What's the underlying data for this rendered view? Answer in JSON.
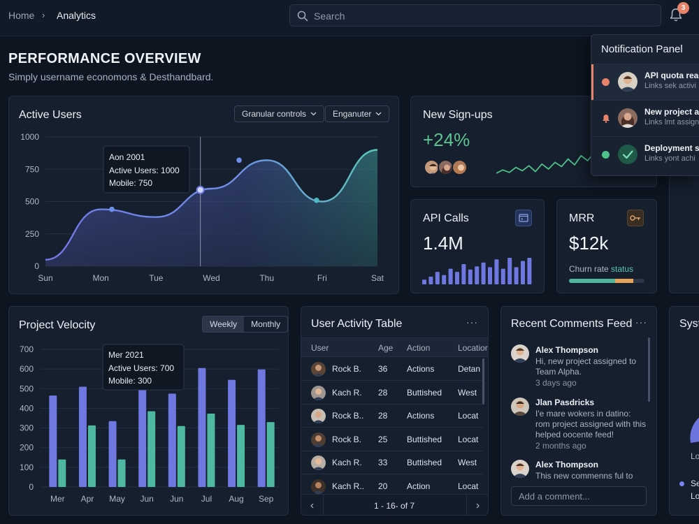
{
  "breadcrumb": {
    "home": "Home",
    "separator": "›",
    "current": "Analytics"
  },
  "search": {
    "placeholder": "Search"
  },
  "notifications_count": "3",
  "page": {
    "title": "PERFORMANCE OVERVIEW",
    "subtitle": "Simply username economons & Desthandbard."
  },
  "active_users": {
    "title": "Active Users",
    "dropdown1": "Granular controls",
    "dropdown2": "Enganuter",
    "tooltip": {
      "title": "Aon 2001",
      "line1": "Active Users: 1000",
      "line2": "Mobile: 750"
    }
  },
  "signups": {
    "title": "New Sign-ups",
    "value": "+24%",
    "accent": "#5fc48f"
  },
  "api_calls": {
    "title": "API Calls",
    "value": "1.4M"
  },
  "mrr": {
    "title": "MRR",
    "value": "$12k",
    "churn_label": "Churn rate",
    "churn_status": "status",
    "churn_fill": 0.85
  },
  "velocity": {
    "title": "Project Velocity",
    "tab_weekly": "Weekly",
    "tab_monthly": "Monthly",
    "tooltip": {
      "title": "Mer 2021",
      "line1": "Active Users: 700",
      "line2": "Mobile: 300"
    }
  },
  "user_table": {
    "title": "User Activity Table",
    "menu": "···",
    "columns": [
      "User",
      "Age",
      "Action",
      "Location"
    ],
    "rows": [
      [
        "Rock B.",
        "36",
        "Actions",
        "Detan"
      ],
      [
        "Kach R.",
        "28",
        "Buttished",
        "West"
      ],
      [
        "Rock B..",
        "28",
        "Actions",
        "Locat"
      ],
      [
        "Rock B.",
        "25",
        "Buttished",
        "Locat"
      ],
      [
        "Kach R.",
        "33",
        "Buttished",
        "West"
      ],
      [
        "Kach R..",
        "20",
        "Action",
        "Locat"
      ]
    ],
    "pagination": "1 - 16- of 7",
    "prev": "‹",
    "next": "›"
  },
  "comments": {
    "title": "Recent Comments Feed",
    "menu": "···",
    "items": [
      {
        "name": "Alex Thompson",
        "text": "Hi, new project assigned to Team Alpha.",
        "time": "3 days ago"
      },
      {
        "name": "Jlan Pasdricks",
        "text": "I'e mare wokers in datino: rom project assigned with this helped oocente feed!",
        "time": "2 months ago"
      },
      {
        "name": "Alex Thompson",
        "text": "This new commenns ful to",
        "time": ""
      }
    ],
    "input_placeholder": "Add a comment..."
  },
  "system_card": {
    "title": "Syst",
    "legend1": "Lo",
    "legend2": "Se",
    "legend3": "Lo"
  },
  "notification_panel": {
    "title": "Notification Panel",
    "items": [
      {
        "title": "API quota reac",
        "sub": "Links sek activi",
        "dot": "#e8846a"
      },
      {
        "title": "New project as",
        "sub": "Links lmt assign",
        "dot": "#e8846a"
      },
      {
        "title": "Deployment su",
        "sub": "Links yont achi",
        "dot": "#4fc08a"
      }
    ]
  },
  "chart_data": [
    {
      "type": "area",
      "title": "Active Users",
      "categories": [
        "Sun",
        "Mon",
        "Tue",
        "Wed",
        "Thu",
        "Fri",
        "Sat"
      ],
      "x": [
        0,
        1,
        2,
        3,
        4,
        5,
        6
      ],
      "values": [
        50,
        440,
        380,
        600,
        820,
        500,
        900
      ],
      "points": [
        [
          1.2,
          440
        ],
        [
          2.8,
          590
        ],
        [
          3.5,
          820
        ],
        [
          4.9,
          510
        ]
      ],
      "cursor_x": 2.8,
      "ylim": [
        0,
        1000
      ],
      "yticks": [
        0,
        250,
        500,
        750,
        1000
      ],
      "grid": true
    },
    {
      "type": "bar",
      "title": "Project Velocity",
      "categories": [
        "Mer",
        "Apr",
        "May",
        "Jun",
        "Jun",
        "Jul",
        "Aug",
        "Sep"
      ],
      "series": [
        {
          "values": [
            465,
            510,
            335,
            500,
            475,
            605,
            545,
            598
          ]
        },
        {
          "values": [
            140,
            313,
            140,
            385,
            310,
            373,
            316,
            330
          ]
        }
      ],
      "ylim": [
        0,
        700
      ],
      "yticks": [
        0,
        100,
        200,
        300,
        400,
        500,
        600,
        700
      ],
      "grid": true
    },
    {
      "type": "line",
      "title": "New Sign-ups",
      "values": [
        5,
        9,
        6,
        12,
        8,
        14,
        7,
        16,
        10,
        18,
        13,
        22,
        15,
        26,
        20,
        30
      ]
    },
    {
      "type": "bar",
      "title": "API Calls",
      "values": [
        6,
        10,
        16,
        12,
        20,
        16,
        26,
        19,
        23,
        28,
        22,
        32,
        20,
        34,
        22,
        30,
        34
      ]
    }
  ],
  "colors": {
    "bg": "#0d1521",
    "card": "#151f2d",
    "series1": "#6f78e0",
    "series2": "#4fb8a0",
    "accent": "#e8846a"
  }
}
